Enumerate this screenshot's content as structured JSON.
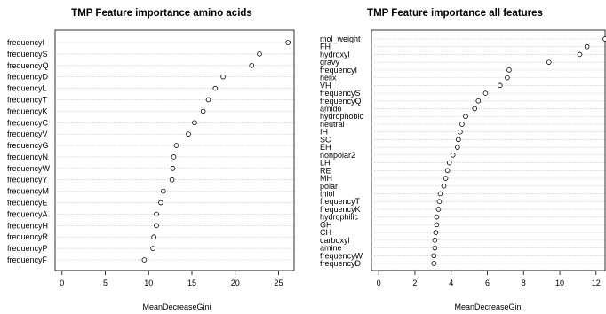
{
  "chart_data": [
    {
      "type": "scatter",
      "title": "TMP Feature importance amino acids",
      "xlabel": "MeanDecreaseGini",
      "ylabel": "",
      "xlim": [
        -0.8,
        26.8
      ],
      "xticks": [
        0,
        5,
        10,
        15,
        20,
        25
      ],
      "grid": true,
      "categories": [
        "frequencyI",
        "frequencyS",
        "frequencyQ",
        "frequencyD",
        "frequencyL",
        "frequencyT",
        "frequencyK",
        "frequencyC",
        "frequencyV",
        "frequencyG",
        "frequencyN",
        "frequencyW",
        "frequencyY",
        "frequencyM",
        "frequencyE",
        "frequencyA",
        "frequencyH",
        "frequencyR",
        "frequencyP",
        "frequencyF"
      ],
      "values": [
        26.1,
        22.8,
        21.9,
        18.6,
        17.7,
        16.9,
        16.3,
        15.3,
        14.6,
        13.2,
        12.9,
        12.8,
        12.7,
        11.7,
        11.4,
        10.9,
        10.9,
        10.6,
        10.5,
        9.5
      ]
    },
    {
      "type": "scatter",
      "title": "TMP Feature importance all features",
      "xlabel": "MeanDecreaseGini",
      "ylabel": "",
      "xlim": [
        -0.4,
        12.5
      ],
      "xticks": [
        0,
        2,
        4,
        6,
        8,
        10,
        12
      ],
      "grid": true,
      "categories": [
        "mol_weight",
        "FH",
        "hydroxyl",
        "gravy",
        "frequencyI",
        "helix",
        "VH",
        "frequencyS",
        "frequencyQ",
        "amido",
        "hydrophobic",
        "neutral",
        "IH",
        "SC",
        "EH",
        "nonpolar2",
        "LH",
        "RE",
        "MH",
        "polar",
        "thiol",
        "frequencyT",
        "frequencyK",
        "hydrophilic",
        "GH",
        "CH",
        "carboxyl",
        "amine",
        "frequencyW",
        "frequencyD"
      ],
      "values": [
        12.5,
        11.5,
        11.1,
        9.4,
        7.2,
        7.1,
        6.7,
        5.9,
        5.5,
        5.3,
        4.8,
        4.6,
        4.5,
        4.4,
        4.35,
        4.1,
        3.9,
        3.8,
        3.7,
        3.6,
        3.4,
        3.35,
        3.3,
        3.2,
        3.2,
        3.15,
        3.1,
        3.1,
        3.05,
        3.05
      ]
    }
  ]
}
